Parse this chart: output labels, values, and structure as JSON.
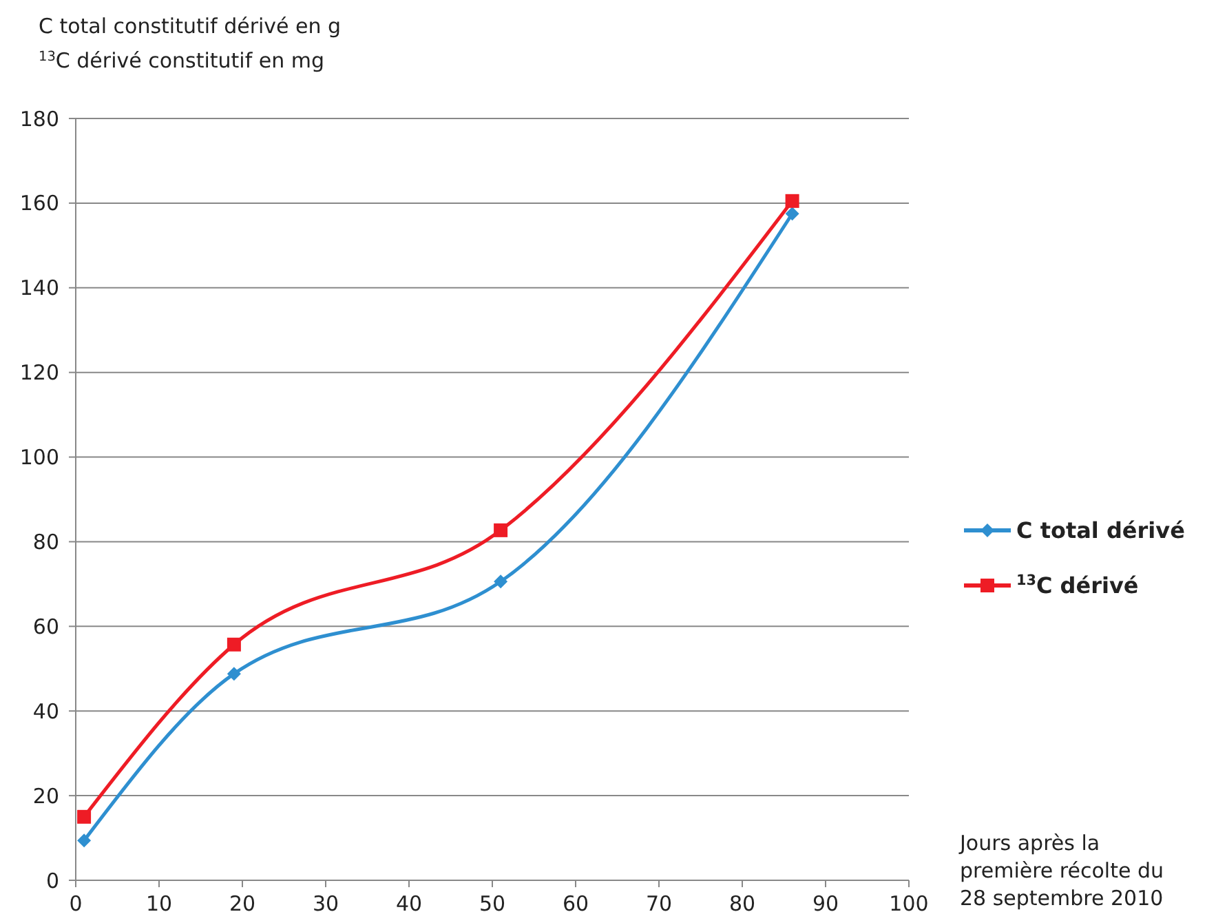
{
  "chart_data": {
    "type": "line",
    "ylabel": "C total constitutif dérivé en g\n$^{13}$C dérivé constitutif en mg",
    "xlabel": "Jours après la\npremière récolte du\n28 septembre 2010",
    "x": [
      1,
      19,
      51,
      86
    ],
    "series": [
      {
        "name": "C total dérivé",
        "color": "#2e8fd0",
        "values": [
          9.4,
          48.8,
          70.6,
          157.5
        ],
        "marker": "diamond"
      },
      {
        "name": "$^{13}$C dérivé",
        "color": "#ee1c25",
        "values": [
          15,
          55.7,
          82.7,
          160.5
        ],
        "marker": "square"
      }
    ],
    "xlim": [
      0,
      100
    ],
    "xticks": [
      0,
      10,
      20,
      30,
      40,
      50,
      60,
      70,
      80,
      90,
      100
    ],
    "ylim": [
      0,
      180
    ],
    "yticks": [
      0,
      20,
      40,
      60,
      80,
      100,
      120,
      140,
      160,
      180
    ],
    "grid": "y",
    "legend": "right",
    "line_style": "solid"
  }
}
